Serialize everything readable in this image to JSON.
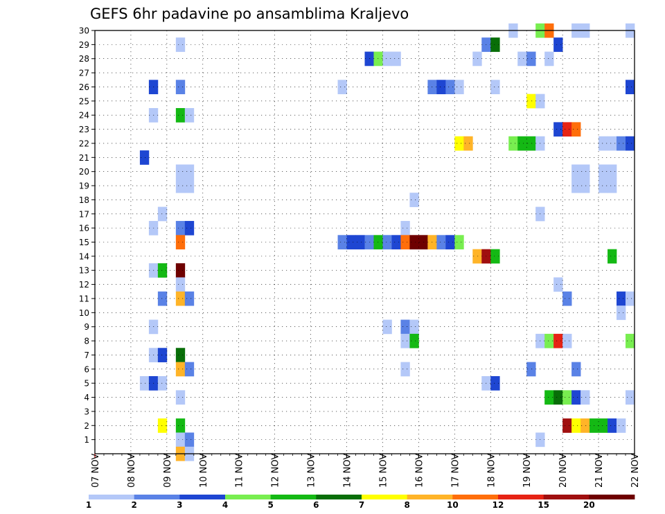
{
  "chart_data": {
    "type": "heatmap",
    "title": "GEFS 6hr padavine po ansamblima Kraljevo",
    "xlabel": "",
    "ylabel": "",
    "x_range": [
      0,
      60
    ],
    "y_range": [
      0,
      30
    ],
    "x_tick_labels": [
      "07 NOV",
      "08 NOV",
      "09 NOV",
      "10 NOV",
      "11 NOV",
      "12 NOV",
      "13 NOV",
      "14 NOV",
      "15 NOV",
      "16 NOV",
      "17 NOV",
      "18 NOV",
      "19 NOV",
      "20 NOV",
      "21 NOV",
      "22 NOV"
    ],
    "y_ticks": [
      1,
      2,
      3,
      4,
      5,
      6,
      7,
      8,
      9,
      10,
      11,
      12,
      13,
      14,
      15,
      16,
      17,
      18,
      19,
      20,
      21,
      22,
      23,
      24,
      25,
      26,
      27,
      28,
      29,
      30
    ],
    "grid": true,
    "legend": {
      "placement": "bottom",
      "bounds": [
        "1",
        "2",
        "3",
        "4",
        "5",
        "6",
        "7",
        "8",
        "10",
        "12",
        "15",
        "20"
      ],
      "colors": [
        "#b4c8f8",
        "#5a82e6",
        "#1e46d2",
        "#78ee50",
        "#14b914",
        "#086e08",
        "#ffff00",
        "#ffb428",
        "#ff6e0a",
        "#e62314",
        "#a00f0f",
        "#6e0000"
      ]
    },
    "cells": [
      {
        "member": 30,
        "step": 46,
        "level": 1
      },
      {
        "member": 30,
        "step": 49,
        "level": 4
      },
      {
        "member": 30,
        "step": 50,
        "level": 9
      },
      {
        "member": 30,
        "step": 53,
        "level": 1
      },
      {
        "member": 30,
        "step": 54,
        "level": 1
      },
      {
        "member": 30,
        "step": 59,
        "level": 1
      },
      {
        "member": 29,
        "step": 9,
        "level": 1
      },
      {
        "member": 29,
        "step": 43,
        "level": 2
      },
      {
        "member": 29,
        "step": 44,
        "level": 6
      },
      {
        "member": 29,
        "step": 51,
        "level": 3
      },
      {
        "member": 28,
        "step": 30,
        "level": 3
      },
      {
        "member": 28,
        "step": 31,
        "level": 4
      },
      {
        "member": 28,
        "step": 32,
        "level": 1
      },
      {
        "member": 28,
        "step": 33,
        "level": 1
      },
      {
        "member": 28,
        "step": 42,
        "level": 1
      },
      {
        "member": 28,
        "step": 47,
        "level": 1
      },
      {
        "member": 28,
        "step": 48,
        "level": 2
      },
      {
        "member": 28,
        "step": 50,
        "level": 1
      },
      {
        "member": 26,
        "step": 6,
        "level": 3
      },
      {
        "member": 26,
        "step": 9,
        "level": 2
      },
      {
        "member": 26,
        "step": 27,
        "level": 1
      },
      {
        "member": 26,
        "step": 37,
        "level": 2
      },
      {
        "member": 26,
        "step": 38,
        "level": 3
      },
      {
        "member": 26,
        "step": 39,
        "level": 2
      },
      {
        "member": 26,
        "step": 40,
        "level": 1
      },
      {
        "member": 26,
        "step": 44,
        "level": 1
      },
      {
        "member": 26,
        "step": 59,
        "level": 3
      },
      {
        "member": 25,
        "step": 48,
        "level": 7
      },
      {
        "member": 25,
        "step": 49,
        "level": 1
      },
      {
        "member": 24,
        "step": 6,
        "level": 1
      },
      {
        "member": 24,
        "step": 9,
        "level": 5
      },
      {
        "member": 24,
        "step": 10,
        "level": 1
      },
      {
        "member": 23,
        "step": 51,
        "level": 3
      },
      {
        "member": 23,
        "step": 52,
        "level": 10
      },
      {
        "member": 23,
        "step": 53,
        "level": 9
      },
      {
        "member": 22,
        "step": 40,
        "level": 7
      },
      {
        "member": 22,
        "step": 41,
        "level": 8
      },
      {
        "member": 22,
        "step": 46,
        "level": 4
      },
      {
        "member": 22,
        "step": 47,
        "level": 5
      },
      {
        "member": 22,
        "step": 48,
        "level": 5
      },
      {
        "member": 22,
        "step": 49,
        "level": 1
      },
      {
        "member": 22,
        "step": 56,
        "level": 1
      },
      {
        "member": 22,
        "step": 57,
        "level": 1
      },
      {
        "member": 22,
        "step": 58,
        "level": 2
      },
      {
        "member": 22,
        "step": 59,
        "level": 3
      },
      {
        "member": 21,
        "step": 5,
        "level": 3
      },
      {
        "member": 20,
        "step": 9,
        "level": 1
      },
      {
        "member": 20,
        "step": 10,
        "level": 1
      },
      {
        "member": 20,
        "step": 53,
        "level": 1
      },
      {
        "member": 20,
        "step": 54,
        "level": 1
      },
      {
        "member": 20,
        "step": 56,
        "level": 1
      },
      {
        "member": 20,
        "step": 57,
        "level": 1
      },
      {
        "member": 19,
        "step": 9,
        "level": 1
      },
      {
        "member": 19,
        "step": 10,
        "level": 1
      },
      {
        "member": 19,
        "step": 53,
        "level": 1
      },
      {
        "member": 19,
        "step": 54,
        "level": 1
      },
      {
        "member": 19,
        "step": 56,
        "level": 1
      },
      {
        "member": 19,
        "step": 57,
        "level": 1
      },
      {
        "member": 18,
        "step": 35,
        "level": 1
      },
      {
        "member": 17,
        "step": 7,
        "level": 1
      },
      {
        "member": 17,
        "step": 49,
        "level": 1
      },
      {
        "member": 16,
        "step": 6,
        "level": 1
      },
      {
        "member": 16,
        "step": 9,
        "level": 2
      },
      {
        "member": 16,
        "step": 10,
        "level": 3
      },
      {
        "member": 16,
        "step": 34,
        "level": 1
      },
      {
        "member": 15,
        "step": 9,
        "level": 9
      },
      {
        "member": 15,
        "step": 27,
        "level": 2
      },
      {
        "member": 15,
        "step": 28,
        "level": 3
      },
      {
        "member": 15,
        "step": 29,
        "level": 3
      },
      {
        "member": 15,
        "step": 30,
        "level": 2
      },
      {
        "member": 15,
        "step": 31,
        "level": 5
      },
      {
        "member": 15,
        "step": 32,
        "level": 2
      },
      {
        "member": 15,
        "step": 33,
        "level": 3
      },
      {
        "member": 15,
        "step": 34,
        "level": 9
      },
      {
        "member": 15,
        "step": 35,
        "level": 12
      },
      {
        "member": 15,
        "step": 36,
        "level": 12
      },
      {
        "member": 15,
        "step": 37,
        "level": 8
      },
      {
        "member": 15,
        "step": 38,
        "level": 2
      },
      {
        "member": 15,
        "step": 39,
        "level": 3
      },
      {
        "member": 15,
        "step": 40,
        "level": 4
      },
      {
        "member": 14,
        "step": 42,
        "level": 8
      },
      {
        "member": 14,
        "step": 43,
        "level": 11
      },
      {
        "member": 14,
        "step": 44,
        "level": 5
      },
      {
        "member": 14,
        "step": 57,
        "level": 5
      },
      {
        "member": 13,
        "step": 6,
        "level": 1
      },
      {
        "member": 13,
        "step": 7,
        "level": 5
      },
      {
        "member": 13,
        "step": 9,
        "level": 12
      },
      {
        "member": 12,
        "step": 9,
        "level": 1
      },
      {
        "member": 12,
        "step": 51,
        "level": 1
      },
      {
        "member": 11,
        "step": 7,
        "level": 2
      },
      {
        "member": 11,
        "step": 9,
        "level": 8
      },
      {
        "member": 11,
        "step": 10,
        "level": 2
      },
      {
        "member": 11,
        "step": 52,
        "level": 2
      },
      {
        "member": 11,
        "step": 58,
        "level": 3
      },
      {
        "member": 11,
        "step": 59,
        "level": 1
      },
      {
        "member": 10,
        "step": 58,
        "level": 1
      },
      {
        "member": 9,
        "step": 6,
        "level": 1
      },
      {
        "member": 9,
        "step": 32,
        "level": 1
      },
      {
        "member": 9,
        "step": 34,
        "level": 2
      },
      {
        "member": 9,
        "step": 35,
        "level": 1
      },
      {
        "member": 8,
        "step": 34,
        "level": 1
      },
      {
        "member": 8,
        "step": 35,
        "level": 5
      },
      {
        "member": 8,
        "step": 49,
        "level": 1
      },
      {
        "member": 8,
        "step": 50,
        "level": 4
      },
      {
        "member": 8,
        "step": 51,
        "level": 10
      },
      {
        "member": 8,
        "step": 52,
        "level": 1
      },
      {
        "member": 8,
        "step": 59,
        "level": 4
      },
      {
        "member": 7,
        "step": 6,
        "level": 1
      },
      {
        "member": 7,
        "step": 7,
        "level": 3
      },
      {
        "member": 7,
        "step": 9,
        "level": 6
      },
      {
        "member": 6,
        "step": 9,
        "level": 8
      },
      {
        "member": 6,
        "step": 10,
        "level": 2
      },
      {
        "member": 6,
        "step": 34,
        "level": 1
      },
      {
        "member": 6,
        "step": 48,
        "level": 2
      },
      {
        "member": 6,
        "step": 53,
        "level": 2
      },
      {
        "member": 5,
        "step": 5,
        "level": 1
      },
      {
        "member": 5,
        "step": 6,
        "level": 3
      },
      {
        "member": 5,
        "step": 7,
        "level": 1
      },
      {
        "member": 5,
        "step": 43,
        "level": 1
      },
      {
        "member": 5,
        "step": 44,
        "level": 3
      },
      {
        "member": 4,
        "step": 9,
        "level": 1
      },
      {
        "member": 4,
        "step": 50,
        "level": 5
      },
      {
        "member": 4,
        "step": 51,
        "level": 6
      },
      {
        "member": 4,
        "step": 52,
        "level": 4
      },
      {
        "member": 4,
        "step": 53,
        "level": 3
      },
      {
        "member": 4,
        "step": 54,
        "level": 1
      },
      {
        "member": 4,
        "step": 59,
        "level": 1
      },
      {
        "member": 2,
        "step": 7,
        "level": 7
      },
      {
        "member": 2,
        "step": 9,
        "level": 5
      },
      {
        "member": 2,
        "step": 52,
        "level": 11
      },
      {
        "member": 2,
        "step": 53,
        "level": 7
      },
      {
        "member": 2,
        "step": 54,
        "level": 8
      },
      {
        "member": 2,
        "step": 55,
        "level": 5
      },
      {
        "member": 2,
        "step": 56,
        "level": 5
      },
      {
        "member": 2,
        "step": 57,
        "level": 3
      },
      {
        "member": 2,
        "step": 58,
        "level": 1
      },
      {
        "member": 1,
        "step": 9,
        "level": 1
      },
      {
        "member": 1,
        "step": 10,
        "level": 2
      },
      {
        "member": 1,
        "step": 49,
        "level": 1
      },
      {
        "member": 0,
        "step": 9,
        "level": 8
      },
      {
        "member": 0,
        "step": 10,
        "level": 1
      }
    ]
  }
}
